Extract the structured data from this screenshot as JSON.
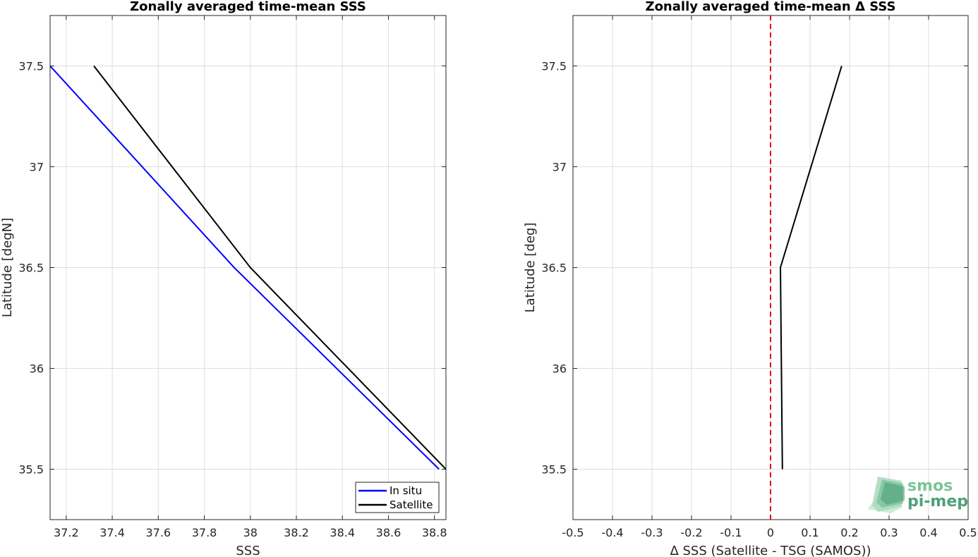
{
  "chart_data": [
    {
      "type": "line",
      "title": "Zonally averaged time-mean SSS",
      "xlabel": "SSS",
      "ylabel": "Latitude [degN]",
      "xlim": [
        37.13,
        38.85
      ],
      "ylim": [
        35.25,
        37.75
      ],
      "xticks": [
        "37.2",
        "37.4",
        "37.6",
        "37.8",
        "38",
        "38.2",
        "38.4",
        "38.6",
        "38.8"
      ],
      "yticks": [
        "35.5",
        "36",
        "36.5",
        "37",
        "37.5"
      ],
      "grid": true,
      "legend_position": "bottom-right",
      "series": [
        {
          "name": "In situ",
          "color": "#0000ff",
          "points": [
            [
              37.13,
              37.5
            ],
            [
              37.93,
              36.5
            ],
            [
              38.82,
              35.5
            ]
          ]
        },
        {
          "name": "Satellite",
          "color": "#000000",
          "points": [
            [
              37.32,
              37.5
            ],
            [
              38.0,
              36.5
            ],
            [
              38.85,
              35.5
            ]
          ]
        }
      ]
    },
    {
      "type": "line",
      "title": "Zonally averaged time-mean Δ SSS",
      "xlabel": "Δ SSS (Satellite - TSG (SAMOS))",
      "ylabel": "Latitude [deg]",
      "xlim": [
        -0.5,
        0.5
      ],
      "ylim": [
        35.25,
        37.75
      ],
      "xticks": [
        "-0.5",
        "-0.4",
        "-0.3",
        "-0.2",
        "-0.1",
        "0",
        "0.1",
        "0.2",
        "0.3",
        "0.4",
        "0.5"
      ],
      "yticks": [
        "35.5",
        "36",
        "36.5",
        "37",
        "37.5"
      ],
      "grid": true,
      "reference_line": {
        "x": 0,
        "color": "#e60000",
        "style": "dashed"
      },
      "series": [
        {
          "color": "#000000",
          "points": [
            [
              0.18,
              37.5
            ],
            [
              0.025,
              36.5
            ],
            [
              0.03,
              35.5
            ]
          ]
        }
      ]
    }
  ],
  "logo": {
    "line1": "smos",
    "line2": "pi-mep"
  }
}
